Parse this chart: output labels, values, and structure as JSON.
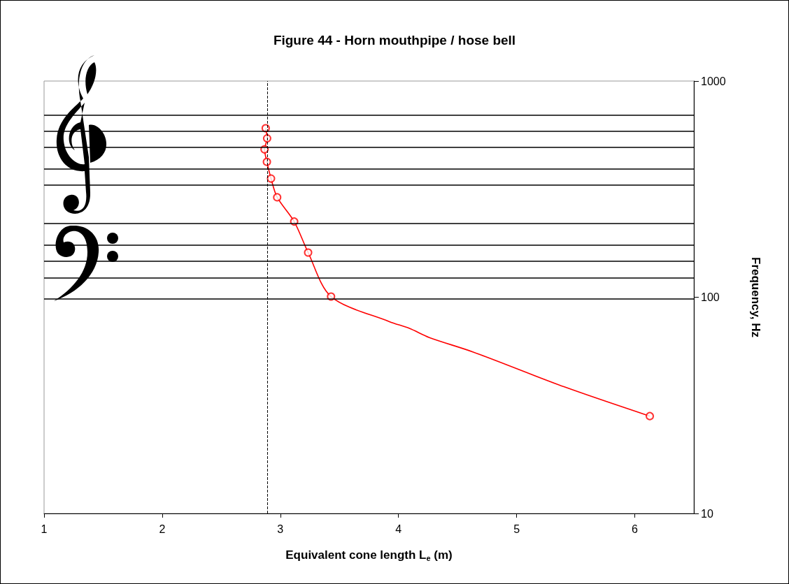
{
  "chart_data": {
    "type": "line",
    "title": "Figure 44 - Horn mouthpipe / hose bell",
    "xlabel": "Equivalent cone length L$_{e}$ (m)",
    "ylabel": "Frequency, Hz",
    "xlim": [
      1,
      6.5
    ],
    "xticks": [
      1,
      2,
      3,
      4,
      5,
      6
    ],
    "ylim": [
      10,
      1000
    ],
    "yticks": [
      10,
      100,
      1000
    ],
    "log": "y",
    "grid": false,
    "series": [
      {
        "marker": "none",
        "color": "#ff0000",
        "x": [
          2.876,
          2.888,
          2.866,
          2.886,
          2.921,
          2.973,
          3.117,
          3.235,
          3.429,
          3.923,
          4.092,
          4.261,
          4.632,
          5.404,
          6.127
        ],
        "values": [
          605,
          543,
          483,
          423,
          354,
          290,
          224,
          161,
          100.7,
          77.1,
          71.8,
          65.1,
          55.8,
          38.5,
          28.2
        ]
      },
      {
        "type": "scatter",
        "marker": "circle",
        "color": "#ff0000",
        "x": [
          2.876,
          2.888,
          2.866,
          2.886,
          2.921,
          2.973,
          3.117,
          3.235,
          3.429,
          6.127
        ],
        "values": [
          605,
          543,
          483,
          423,
          354,
          290,
          224,
          161,
          100.7,
          28.2
        ]
      }
    ],
    "ref_lines": [
      {
        "axis": "x",
        "value": 2.89,
        "line_style": "dashed",
        "color": "#000000"
      },
      {
        "axis": "y",
        "value": 698,
        "color": "#000000"
      },
      {
        "axis": "y",
        "value": 587,
        "color": "#000000"
      },
      {
        "axis": "y",
        "value": 494,
        "color": "#000000"
      },
      {
        "axis": "y",
        "value": 392,
        "color": "#000000"
      },
      {
        "axis": "y",
        "value": 330,
        "color": "#000000"
      },
      {
        "axis": "y",
        "value": 220,
        "color": "#000000"
      },
      {
        "axis": "y",
        "value": 175,
        "color": "#000000"
      },
      {
        "axis": "y",
        "value": 147,
        "color": "#000000"
      },
      {
        "axis": "y",
        "value": 123,
        "color": "#000000"
      },
      {
        "axis": "y",
        "value": 98,
        "color": "#000000"
      }
    ]
  }
}
